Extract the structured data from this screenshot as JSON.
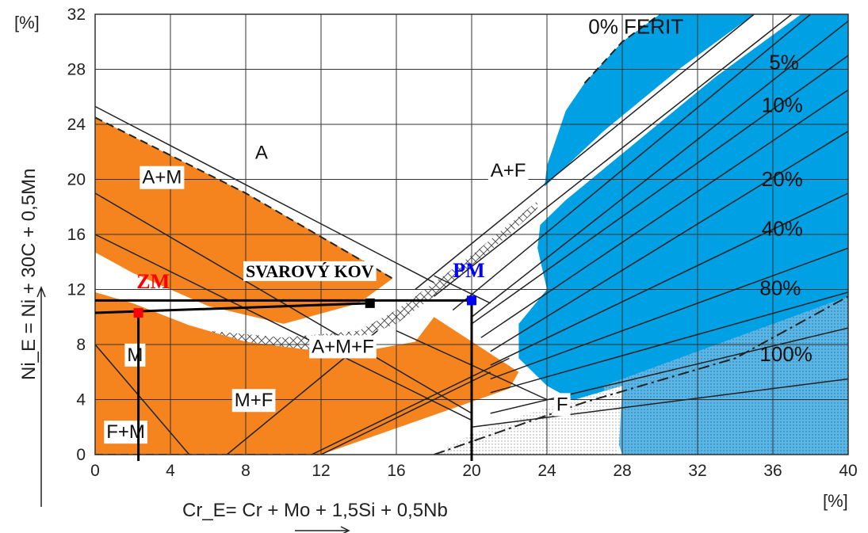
{
  "chart_data": {
    "type": "scatter",
    "title": "",
    "xlabel": "Cr_E= Cr + Mo + 1,5Si + 0,5Nb",
    "ylabel": "Ni_E = Ni + 30C + 0,5Mn",
    "x_unit": "[%]",
    "y_unit": "[%]",
    "xlim": [
      0,
      40
    ],
    "ylim": [
      0,
      32
    ],
    "xticks": [
      0,
      4,
      8,
      12,
      16,
      20,
      24,
      28,
      32,
      36,
      40
    ],
    "yticks": [
      0,
      4,
      8,
      12,
      16,
      20,
      24,
      28,
      32
    ],
    "grid": true,
    "regions": [
      "A",
      "A+M",
      "M",
      "F+M",
      "M+F",
      "A+M+F",
      "A+F",
      "F"
    ],
    "ferrite_lines": [
      "0% FERIT",
      "5%",
      "10%",
      "20%",
      "40%",
      "80%",
      "100%"
    ],
    "points": [
      {
        "label": "ZM",
        "x": 2.3,
        "y": 10.3,
        "color": "#ff0000"
      },
      {
        "label": "SVAROVÝ KOV",
        "x": 14.6,
        "y": 11.0,
        "color": "#000000"
      },
      {
        "label": "PM",
        "x": 20.0,
        "y": 11.2,
        "color": "#0000ff"
      }
    ],
    "colors": {
      "martensite": "#f5841f",
      "ferrite": "#00a0e4",
      "grid": "#333333"
    }
  }
}
